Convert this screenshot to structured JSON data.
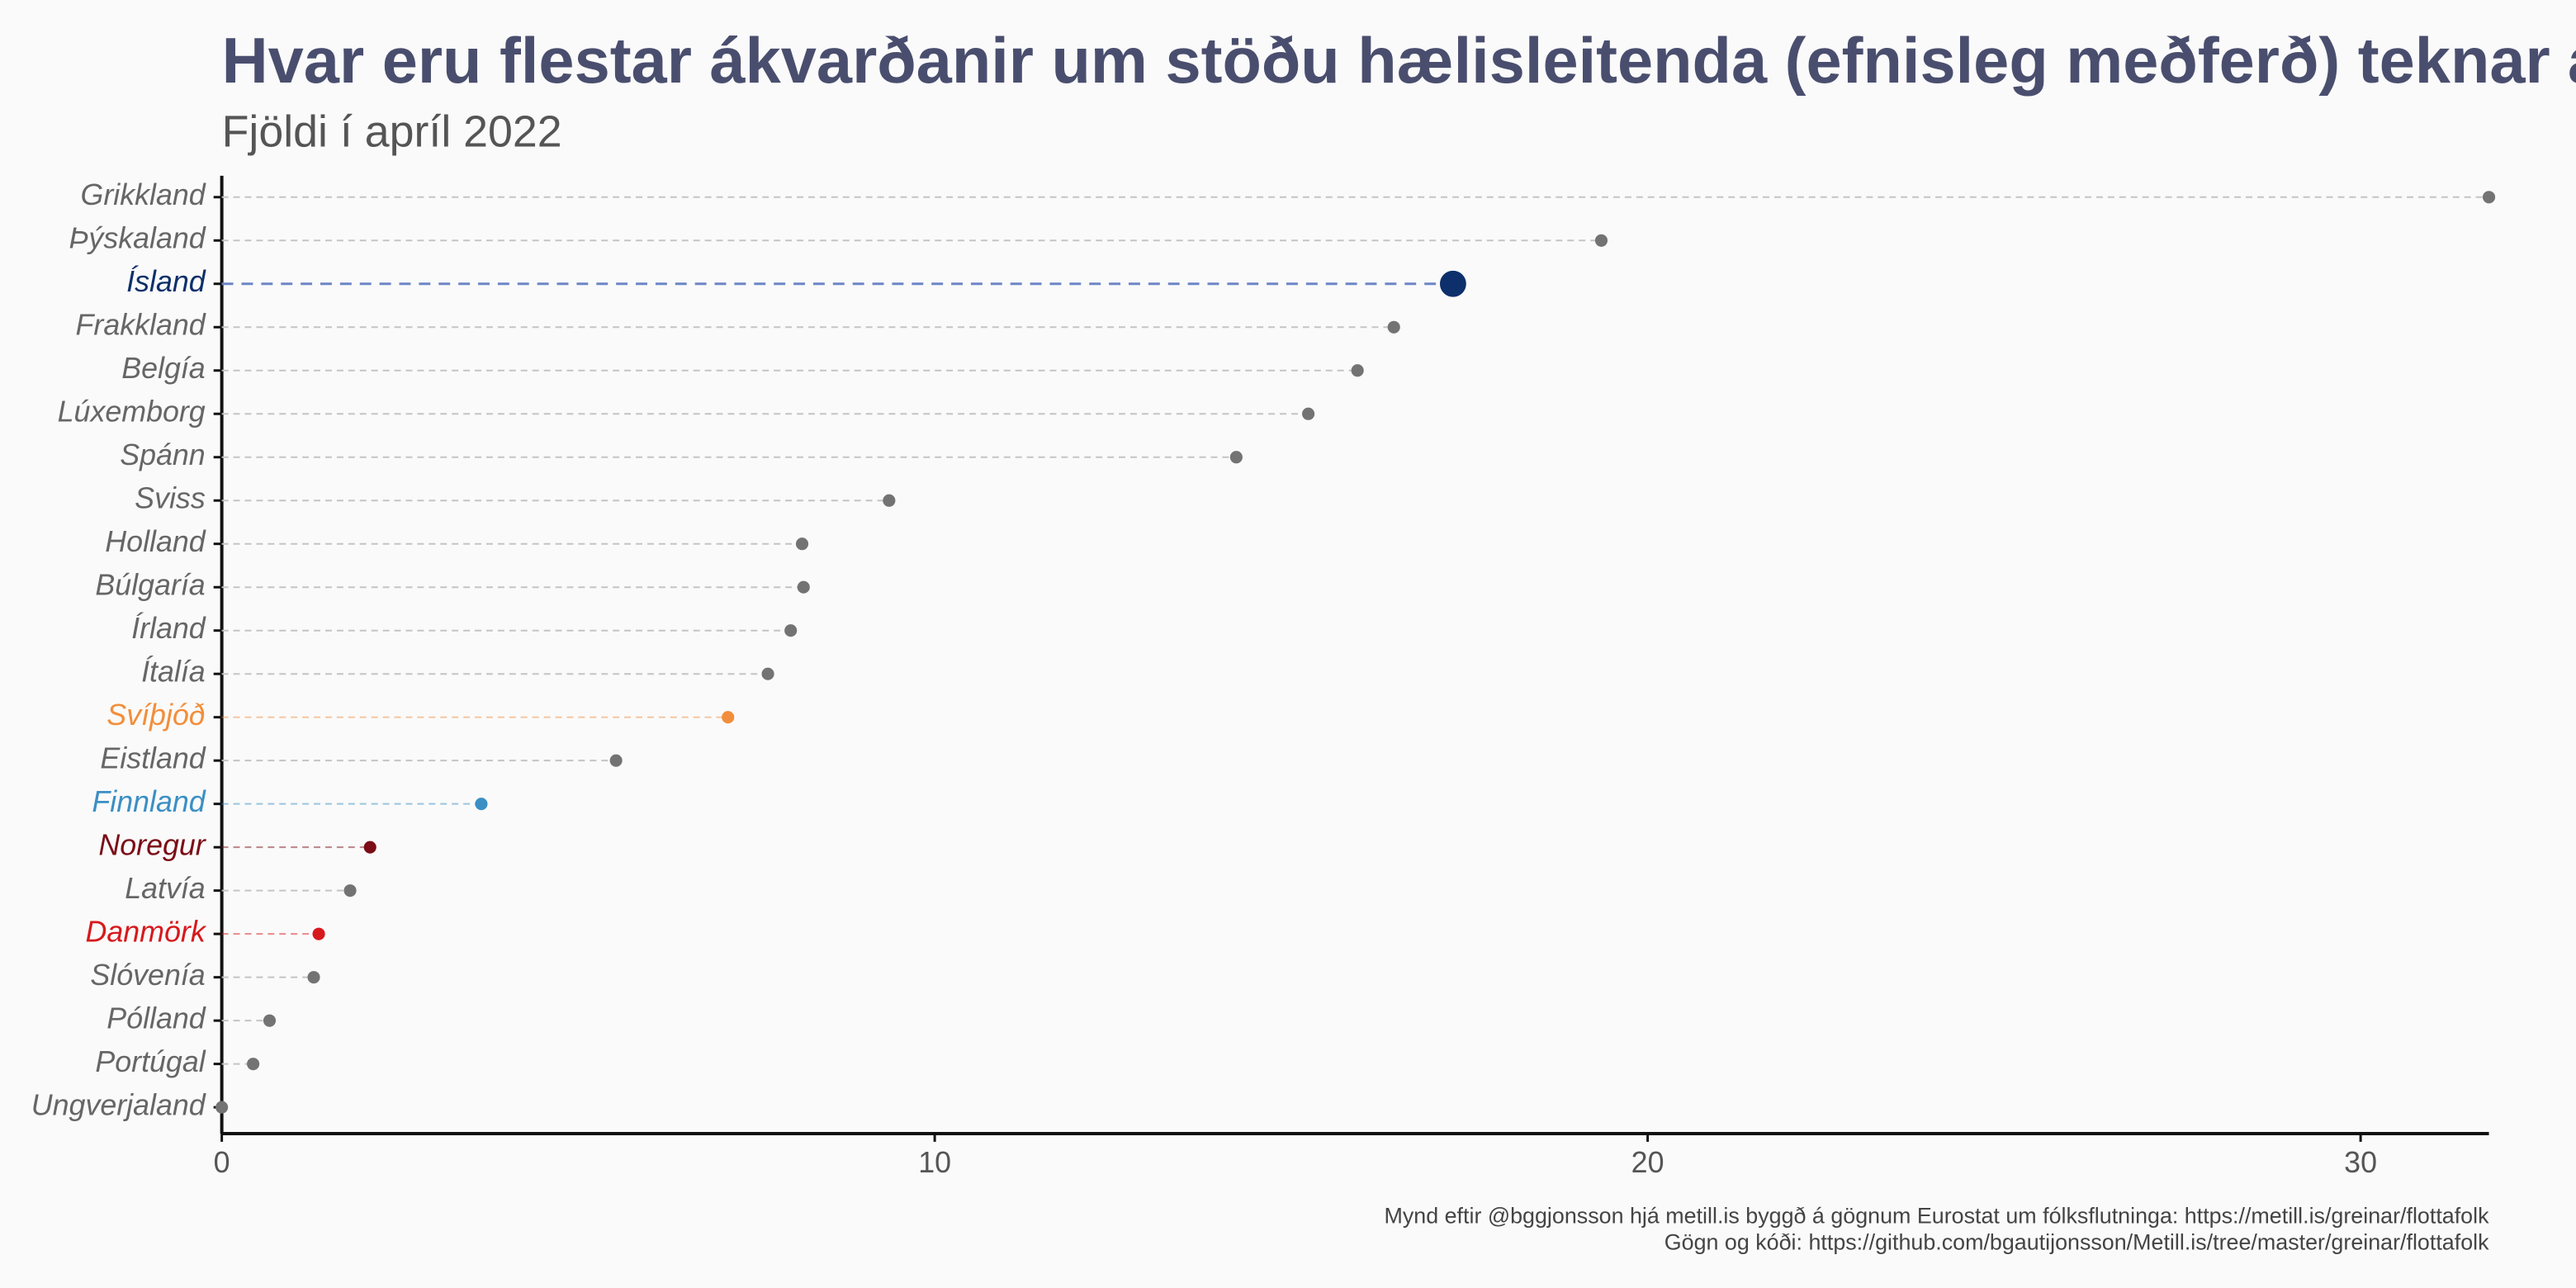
{
  "chart_data": {
    "type": "lollipop",
    "title": "Hvar eru flestar ákvarðanir um stöðu hælisleitenda (efnisleg meðferð) teknar á",
    "subtitle": "Fjöldi í apríl 2022",
    "caption": [
      "Mynd eftir @bggjonsson hjá metill.is byggð á gögnum Eurostat um fólksflutninga: https://metill.is/greinar/flottafolk",
      "Gögn og kóði: https://github.com/bgautijonsson/Metill.is/tree/master/greinar/flottafolk"
    ],
    "categories": [
      "Grikkland",
      "Þýskaland",
      "Ísland",
      "Frakkland",
      "Belgía",
      "Lúxemborg",
      "Spánn",
      "Sviss",
      "Holland",
      "Búlgaría",
      "Írland",
      "Ítalía",
      "Svíþjóð",
      "Eistland",
      "Finnland",
      "Noregur",
      "Latvía",
      "Danmörk",
      "Slóvenía",
      "Pólland",
      "Portúgal",
      "Ungverjaland"
    ],
    "values": [
      31.8,
      19.35,
      17.27,
      16.44,
      15.93,
      15.24,
      14.23,
      9.36,
      8.14,
      8.16,
      7.98,
      7.66,
      7.1,
      5.53,
      3.64,
      2.08,
      1.8,
      1.36,
      1.29,
      0.67,
      0.44,
      0
    ],
    "colors": [
      "#737373",
      "#737373",
      "#0d2f6b",
      "#737373",
      "#737373",
      "#737373",
      "#737373",
      "#737373",
      "#737373",
      "#737373",
      "#737373",
      "#737373",
      "#f28e3b",
      "#737373",
      "#3b8fc4",
      "#7b0d16",
      "#737373",
      "#d7191c",
      "#737373",
      "#737373",
      "#737373",
      "#737373"
    ],
    "highlight": "Ísland",
    "xlim": [
      0,
      31.8
    ],
    "xticks": [
      0,
      10,
      20,
      30
    ]
  }
}
